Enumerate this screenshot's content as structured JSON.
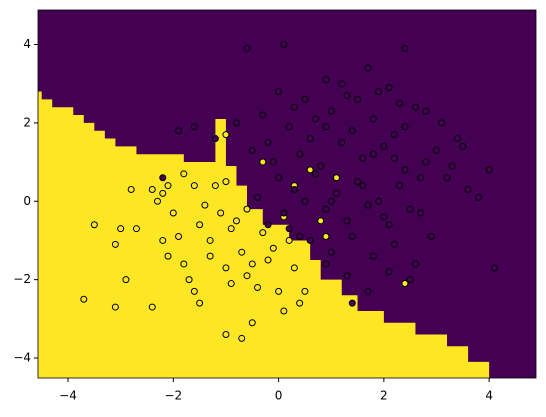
{
  "chart_data": {
    "type": "scatter",
    "background": "#440154",
    "region": {
      "color": "#fde725",
      "x": [
        -4.57,
        -4.5,
        -4.5,
        -4.3,
        -4.3,
        -3.9,
        -3.9,
        -3.7,
        -3.7,
        -3.5,
        -3.5,
        -3.3,
        -3.3,
        -3.1,
        -3.1,
        -2.7,
        -2.7,
        -1.8,
        -1.8,
        -1.2,
        -1.2,
        -1.0,
        -1.0,
        -0.8,
        -0.8,
        -0.6,
        -0.6,
        -0.3,
        -0.3,
        0.2,
        0.2,
        0.6,
        0.6,
        0.8,
        0.8,
        1.2,
        1.2,
        1.5,
        1.5,
        2.0,
        2.0,
        2.6,
        2.6,
        3.2,
        3.2,
        3.6,
        3.6,
        4.0,
        4.0,
        -4.57
      ],
      "y": [
        2.8,
        2.8,
        2.6,
        2.6,
        2.4,
        2.4,
        2.2,
        2.2,
        2.0,
        2.0,
        1.8,
        1.8,
        1.6,
        1.6,
        1.4,
        1.4,
        1.2,
        1.2,
        1.0,
        1.0,
        2.1,
        2.1,
        0.9,
        0.9,
        0.4,
        0.4,
        -0.2,
        -0.2,
        -0.6,
        -0.6,
        -1.0,
        -1.0,
        -1.5,
        -1.5,
        -2.0,
        -2.0,
        -2.4,
        -2.4,
        -2.8,
        -2.8,
        -3.1,
        -3.1,
        -3.4,
        -3.4,
        -3.7,
        -3.7,
        -4.1,
        -4.1,
        -4.51,
        -4.51
      ]
    },
    "series": [
      {
        "color": "#fde725",
        "x": [
          -3.7,
          -3.1,
          -3.1,
          -2.9,
          -3.5,
          -3.0,
          -2.7,
          -2.4,
          -2.2,
          -2.1,
          -2.0,
          -2.2,
          -2.4,
          -2.1,
          -1.9,
          -1.8,
          -1.7,
          -1.6,
          -1.5,
          -1.6,
          -1.5,
          -1.4,
          -1.3,
          -1.2,
          -1.1,
          -1.0,
          -0.9,
          -0.8,
          -0.7,
          -0.6,
          -0.5,
          -0.4,
          -0.3,
          -0.2,
          -0.1,
          0.0,
          0.1,
          0.2,
          0.3,
          0.4,
          0.5,
          -0.5,
          -0.7,
          -1.0,
          -2.8,
          -1.8,
          -1.0,
          -0.9,
          -0.6,
          0.1,
          0.8,
          0.9,
          2.4,
          0.6,
          1.1,
          -0.3,
          0.3,
          -1.0,
          -2.3,
          -1.3
        ],
        "y": [
          -2.5,
          -2.7,
          -1.1,
          -2.0,
          -0.6,
          -0.7,
          -0.7,
          -2.7,
          -1.0,
          -1.4,
          -0.3,
          0.2,
          0.3,
          0.4,
          -0.9,
          -1.6,
          -2.0,
          -2.3,
          -2.6,
          0.4,
          -0.6,
          -0.1,
          -1.0,
          0.4,
          -0.3,
          -1.7,
          -2.1,
          -0.5,
          -1.3,
          -0.2,
          -1.6,
          -2.2,
          -0.8,
          -1.5,
          -1.2,
          -2.3,
          -2.8,
          -1.0,
          -1.7,
          -2.6,
          -2.3,
          -3.1,
          -3.5,
          -3.4,
          0.3,
          0.7,
          0.5,
          -0.7,
          -1.9,
          -0.4,
          -0.5,
          -0.9,
          -2.1,
          0.8,
          0.6,
          1.0,
          0.4,
          1.7,
          0.0,
          -1.4
        ]
      },
      {
        "color": "#440154",
        "x": [
          -0.6,
          0.1,
          -0.2,
          0.5,
          0.9,
          1.3,
          1.7,
          2.1,
          2.4,
          2.8,
          3.1,
          3.4,
          -0.3,
          0.2,
          0.6,
          1.0,
          1.4,
          1.8,
          2.2,
          2.6,
          3.0,
          -0.1,
          0.4,
          0.8,
          1.2,
          1.6,
          2.0,
          2.4,
          2.8,
          3.2,
          0.0,
          0.3,
          0.7,
          1.1,
          1.5,
          1.9,
          2.3,
          2.7,
          -0.4,
          0.1,
          0.5,
          0.9,
          1.3,
          1.7,
          2.1,
          2.5,
          2.9,
          0.2,
          0.6,
          1.0,
          1.4,
          1.8,
          2.2,
          2.6,
          0.9,
          1.3,
          1.7,
          2.1,
          2.5,
          1.5,
          1.9,
          2.3,
          3.6,
          4.0,
          4.1,
          2.4,
          1.8,
          3.5,
          -1.9,
          -2.2,
          -1.6,
          -1.2,
          -0.8,
          0.0,
          1.2,
          3.3,
          1.0,
          0.4,
          -0.2,
          0.9,
          1.6,
          2.0,
          -0.5,
          2.7,
          1.3,
          0.7,
          3.8,
          2.2,
          1.4,
          0.3
        ],
        "y": [
          3.9,
          4.0,
          1.5,
          2.6,
          3.1,
          2.7,
          3.4,
          2.9,
          3.9,
          2.3,
          2.0,
          1.6,
          2.2,
          1.9,
          1.6,
          2.3,
          1.8,
          2.1,
          1.7,
          2.4,
          1.3,
          1.0,
          1.2,
          0.9,
          1.5,
          1.1,
          1.4,
          0.8,
          1.0,
          0.6,
          0.6,
          0.3,
          0.7,
          0.2,
          0.5,
          0.0,
          0.4,
          -0.3,
          0.1,
          -0.3,
          0.0,
          -0.2,
          -0.5,
          -0.1,
          -0.6,
          -0.2,
          -0.9,
          -0.7,
          -1.0,
          -1.3,
          -0.9,
          -1.4,
          -1.1,
          -1.6,
          -1.6,
          -1.9,
          -2.3,
          -1.8,
          -2.0,
          2.6,
          2.8,
          2.5,
          0.3,
          0.8,
          -1.7,
          1.9,
          1.2,
          1.4,
          1.8,
          0.6,
          1.9,
          1.6,
          2.0,
          2.8,
          3.0,
          0.9,
          0.0,
          -0.9,
          -0.6,
          1.9,
          0.4,
          -0.4,
          1.3,
          0.6,
          -0.5,
          2.1,
          0.1,
          1.1,
          -2.6,
          2.4
        ]
      }
    ],
    "xlim": [
      -4.57,
      4.89
    ],
    "ylim": [
      -4.51,
      4.88
    ],
    "xticks": [
      {
        "value": -4,
        "label": "−4"
      },
      {
        "value": -2,
        "label": "−2"
      },
      0,
      2,
      4
    ],
    "yticks": [
      {
        "value": -4,
        "label": "−4"
      },
      {
        "value": -2,
        "label": "−2"
      },
      0,
      2,
      4
    ]
  }
}
